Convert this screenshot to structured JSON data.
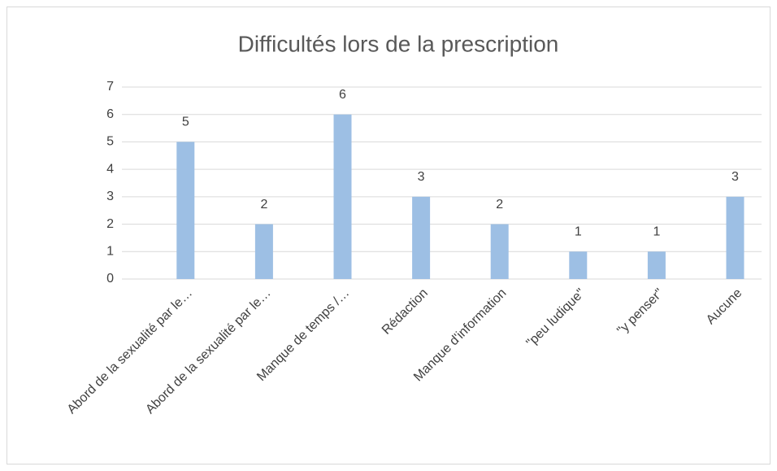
{
  "chart_data": {
    "type": "bar",
    "title": "Difficultés lors de la prescription",
    "categories": [
      "Abord de la sexualité par le…",
      "Abord de la sexualité par le…",
      "Manque de temps /…",
      "Rédaction",
      "Manque d'information",
      "\"peu ludique\"",
      "\"y penser\"",
      "Aucune"
    ],
    "values": [
      5,
      2,
      6,
      3,
      2,
      1,
      1,
      3
    ],
    "color": "#9dbfe4",
    "ylim": [
      0,
      7
    ],
    "yticks": [
      0,
      1,
      2,
      3,
      4,
      5,
      6,
      7
    ],
    "grid": true
  }
}
